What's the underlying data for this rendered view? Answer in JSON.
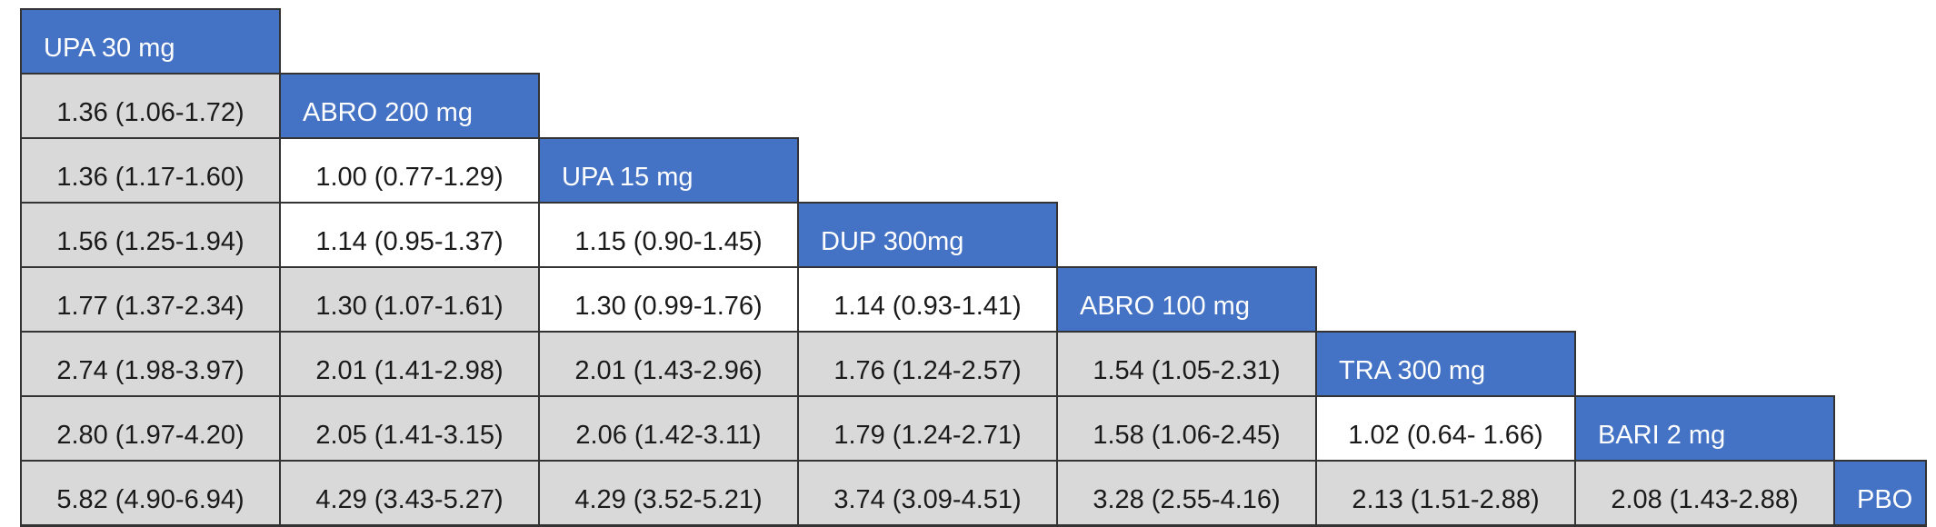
{
  "colors": {
    "diagonal_bg": "#4472C4",
    "diagonal_text": "#FFFFFF",
    "significant_bg": "#D9D9D9",
    "not_significant_bg": "#FFFFFF",
    "border": "#333333",
    "value_text": "#1A1A1A"
  },
  "chart_data": {
    "type": "table",
    "table_style": "lower-triangular league table, treatments on diagonal, shaded cells = confidence interval excludes 1",
    "diagonal_treatments": [
      "UPA 30 mg",
      "ABRO 200 mg",
      "UPA 15 mg",
      "DUP 300mg",
      "ABRO 100 mg",
      "TRA 300 mg",
      "BARI 2 mg",
      "PBO"
    ],
    "rows": [
      {
        "treatment": "UPA 30 mg",
        "cells": []
      },
      {
        "treatment": "ABRO 200 mg",
        "cells": [
          {
            "text": "1.36 (1.06-1.72)",
            "shaded": true
          }
        ]
      },
      {
        "treatment": "UPA 15 mg",
        "cells": [
          {
            "text": "1.36 (1.17-1.60)",
            "shaded": true
          },
          {
            "text": "1.00 (0.77-1.29)",
            "shaded": false
          }
        ]
      },
      {
        "treatment": "DUP 300mg",
        "cells": [
          {
            "text": "1.56 (1.25-1.94)",
            "shaded": true
          },
          {
            "text": "1.14 (0.95-1.37)",
            "shaded": false
          },
          {
            "text": "1.15 (0.90-1.45)",
            "shaded": false
          }
        ]
      },
      {
        "treatment": "ABRO 100 mg",
        "cells": [
          {
            "text": "1.77 (1.37-2.34)",
            "shaded": true
          },
          {
            "text": "1.30 (1.07-1.61)",
            "shaded": true
          },
          {
            "text": "1.30 (0.99-1.76)",
            "shaded": false
          },
          {
            "text": "1.14 (0.93-1.41)",
            "shaded": false
          }
        ]
      },
      {
        "treatment": "TRA 300 mg",
        "cells": [
          {
            "text": "2.74 (1.98-3.97)",
            "shaded": true
          },
          {
            "text": "2.01 (1.41-2.98)",
            "shaded": true
          },
          {
            "text": "2.01 (1.43-2.96)",
            "shaded": true
          },
          {
            "text": "1.76 (1.24-2.57)",
            "shaded": true
          },
          {
            "text": "1.54 (1.05-2.31)",
            "shaded": true
          }
        ]
      },
      {
        "treatment": "BARI 2 mg",
        "cells": [
          {
            "text": "2.80 (1.97-4.20)",
            "shaded": true
          },
          {
            "text": "2.05 (1.41-3.15)",
            "shaded": true
          },
          {
            "text": "2.06 (1.42-3.11)",
            "shaded": true
          },
          {
            "text": "1.79 (1.24-2.71)",
            "shaded": true
          },
          {
            "text": "1.58 (1.06-2.45)",
            "shaded": true
          },
          {
            "text": "1.02 (0.64- 1.66)",
            "shaded": false
          }
        ]
      },
      {
        "treatment": "PBO",
        "cells": [
          {
            "text": "5.82 (4.90-6.94)",
            "shaded": true
          },
          {
            "text": "4.29 (3.43-5.27)",
            "shaded": true
          },
          {
            "text": "4.29 (3.52-5.21)",
            "shaded": true
          },
          {
            "text": "3.74 (3.09-4.51)",
            "shaded": true
          },
          {
            "text": "3.28 (2.55-4.16)",
            "shaded": true
          },
          {
            "text": "2.13 (1.51-2.88)",
            "shaded": true
          },
          {
            "text": "2.08 (1.43-2.88)",
            "shaded": true
          }
        ]
      }
    ]
  }
}
